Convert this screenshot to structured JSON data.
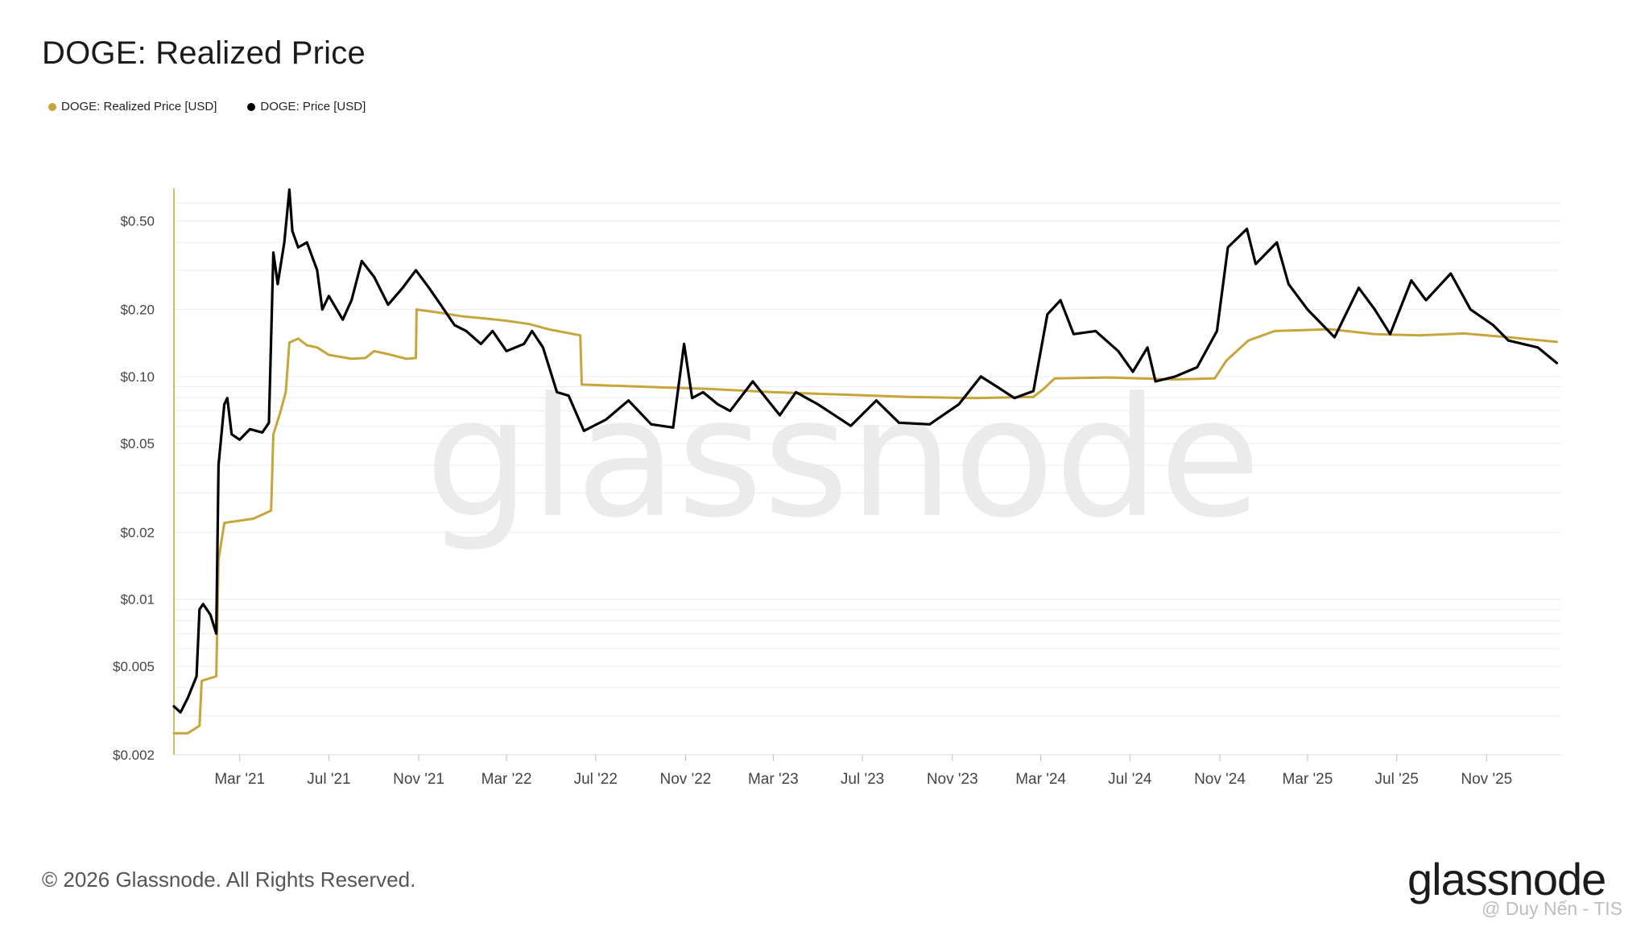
{
  "title": "DOGE: Realized Price",
  "legend": [
    {
      "label": "DOGE: Realized Price [USD]",
      "color": "#c6a63a"
    },
    {
      "label": "DOGE: Price [USD]",
      "color": "#000000"
    }
  ],
  "footer": {
    "copyright": "© 2026 Glassnode. All Rights Reserved.",
    "brand": "glassnode",
    "credit": "@ Duy Nến - TIS"
  },
  "watermark": "glassnode",
  "chart_data": {
    "type": "line",
    "title": "DOGE: Realized Price",
    "xlabel": "",
    "ylabel": "",
    "y_scale": "log",
    "ylim": [
      0.002,
      0.7
    ],
    "xlim": [
      "2020-12-01",
      "2026-02-10"
    ],
    "y_ticks": [
      {
        "value": 0.5,
        "label": "$0.50"
      },
      {
        "value": 0.2,
        "label": "$0.20"
      },
      {
        "value": 0.1,
        "label": "$0.10"
      },
      {
        "value": 0.05,
        "label": "$0.05"
      },
      {
        "value": 0.02,
        "label": "$0.02"
      },
      {
        "value": 0.01,
        "label": "$0.01"
      },
      {
        "value": 0.005,
        "label": "$0.005"
      },
      {
        "value": 0.002,
        "label": "$0.002"
      }
    ],
    "x_ticks": [
      {
        "date": "2021-03-01",
        "label": "Mar '21"
      },
      {
        "date": "2021-07-01",
        "label": "Jul '21"
      },
      {
        "date": "2021-11-01",
        "label": "Nov '21"
      },
      {
        "date": "2022-03-01",
        "label": "Mar '22"
      },
      {
        "date": "2022-07-01",
        "label": "Jul '22"
      },
      {
        "date": "2022-11-01",
        "label": "Nov '22"
      },
      {
        "date": "2023-03-01",
        "label": "Mar '23"
      },
      {
        "date": "2023-07-01",
        "label": "Jul '23"
      },
      {
        "date": "2023-11-01",
        "label": "Nov '23"
      },
      {
        "date": "2024-03-01",
        "label": "Mar '24"
      },
      {
        "date": "2024-07-01",
        "label": "Jul '24"
      },
      {
        "date": "2024-11-01",
        "label": "Nov '24"
      },
      {
        "date": "2025-03-01",
        "label": "Mar '25"
      },
      {
        "date": "2025-07-01",
        "label": "Jul '25"
      },
      {
        "date": "2025-11-01",
        "label": "Nov '25"
      }
    ],
    "grid": true,
    "legend_position": "top-left",
    "series": [
      {
        "name": "DOGE: Realized Price [USD]",
        "color": "#c6a63a",
        "points": [
          [
            "2020-12-01",
            0.0025
          ],
          [
            "2020-12-20",
            0.0025
          ],
          [
            "2021-01-05",
            0.0027
          ],
          [
            "2021-01-08",
            0.0043
          ],
          [
            "2021-01-28",
            0.0045
          ],
          [
            "2021-01-31",
            0.015
          ],
          [
            "2021-02-08",
            0.022
          ],
          [
            "2021-03-20",
            0.023
          ],
          [
            "2021-04-13",
            0.025
          ],
          [
            "2021-04-16",
            0.055
          ],
          [
            "2021-04-25",
            0.068
          ],
          [
            "2021-05-03",
            0.085
          ],
          [
            "2021-05-08",
            0.142
          ],
          [
            "2021-05-20",
            0.148
          ],
          [
            "2021-06-01",
            0.138
          ],
          [
            "2021-06-15",
            0.135
          ],
          [
            "2021-07-01",
            0.125
          ],
          [
            "2021-08-01",
            0.12
          ],
          [
            "2021-08-20",
            0.121
          ],
          [
            "2021-09-01",
            0.13
          ],
          [
            "2021-09-20",
            0.126
          ],
          [
            "2021-10-15",
            0.12
          ],
          [
            "2021-10-28",
            0.121
          ],
          [
            "2021-10-29",
            0.2
          ],
          [
            "2021-12-01",
            0.193
          ],
          [
            "2022-01-01",
            0.186
          ],
          [
            "2022-02-01",
            0.182
          ],
          [
            "2022-03-01",
            0.178
          ],
          [
            "2022-04-01",
            0.172
          ],
          [
            "2022-05-01",
            0.162
          ],
          [
            "2022-06-01",
            0.155
          ],
          [
            "2022-06-10",
            0.153
          ],
          [
            "2022-06-12",
            0.092
          ],
          [
            "2022-09-01",
            0.09
          ],
          [
            "2022-12-01",
            0.088
          ],
          [
            "2023-03-01",
            0.085
          ],
          [
            "2023-06-01",
            0.083
          ],
          [
            "2023-09-01",
            0.081
          ],
          [
            "2023-12-01",
            0.08
          ],
          [
            "2024-02-20",
            0.081
          ],
          [
            "2024-03-05",
            0.088
          ],
          [
            "2024-03-20",
            0.098
          ],
          [
            "2024-06-01",
            0.099
          ],
          [
            "2024-09-01",
            0.097
          ],
          [
            "2024-10-25",
            0.098
          ],
          [
            "2024-11-10",
            0.118
          ],
          [
            "2024-12-10",
            0.145
          ],
          [
            "2025-01-15",
            0.16
          ],
          [
            "2025-04-01",
            0.163
          ],
          [
            "2025-06-01",
            0.155
          ],
          [
            "2025-08-01",
            0.153
          ],
          [
            "2025-10-01",
            0.156
          ],
          [
            "2025-12-01",
            0.15
          ],
          [
            "2026-02-05",
            0.143
          ]
        ]
      },
      {
        "name": "DOGE: Price [USD]",
        "color": "#000000",
        "points": [
          [
            "2020-12-01",
            0.0033
          ],
          [
            "2020-12-10",
            0.0031
          ],
          [
            "2020-12-20",
            0.0036
          ],
          [
            "2021-01-01",
            0.0045
          ],
          [
            "2021-01-05",
            0.009
          ],
          [
            "2021-01-10",
            0.0095
          ],
          [
            "2021-01-20",
            0.0085
          ],
          [
            "2021-01-28",
            0.007
          ],
          [
            "2021-01-31",
            0.04
          ],
          [
            "2021-02-08",
            0.075
          ],
          [
            "2021-02-12",
            0.08
          ],
          [
            "2021-02-18",
            0.055
          ],
          [
            "2021-03-01",
            0.052
          ],
          [
            "2021-03-15",
            0.058
          ],
          [
            "2021-04-01",
            0.056
          ],
          [
            "2021-04-10",
            0.062
          ],
          [
            "2021-04-16",
            0.36
          ],
          [
            "2021-04-22",
            0.26
          ],
          [
            "2021-05-01",
            0.4
          ],
          [
            "2021-05-08",
            0.69
          ],
          [
            "2021-05-12",
            0.45
          ],
          [
            "2021-05-20",
            0.38
          ],
          [
            "2021-06-01",
            0.4
          ],
          [
            "2021-06-15",
            0.3
          ],
          [
            "2021-06-22",
            0.2
          ],
          [
            "2021-07-01",
            0.23
          ],
          [
            "2021-07-20",
            0.18
          ],
          [
            "2021-08-01",
            0.22
          ],
          [
            "2021-08-15",
            0.33
          ],
          [
            "2021-09-01",
            0.28
          ],
          [
            "2021-09-20",
            0.21
          ],
          [
            "2021-10-10",
            0.25
          ],
          [
            "2021-10-28",
            0.3
          ],
          [
            "2021-11-15",
            0.25
          ],
          [
            "2021-12-01",
            0.21
          ],
          [
            "2021-12-20",
            0.17
          ],
          [
            "2022-01-05",
            0.16
          ],
          [
            "2022-01-25",
            0.14
          ],
          [
            "2022-02-10",
            0.16
          ],
          [
            "2022-03-01",
            0.13
          ],
          [
            "2022-03-25",
            0.14
          ],
          [
            "2022-04-05",
            0.16
          ],
          [
            "2022-04-20",
            0.135
          ],
          [
            "2022-05-09",
            0.085
          ],
          [
            "2022-05-25",
            0.082
          ],
          [
            "2022-06-15",
            0.057
          ],
          [
            "2022-07-15",
            0.064
          ],
          [
            "2022-08-15",
            0.078
          ],
          [
            "2022-09-15",
            0.061
          ],
          [
            "2022-10-15",
            0.059
          ],
          [
            "2022-10-30",
            0.14
          ],
          [
            "2022-11-10",
            0.08
          ],
          [
            "2022-11-25",
            0.085
          ],
          [
            "2022-12-15",
            0.075
          ],
          [
            "2023-01-01",
            0.07
          ],
          [
            "2023-02-01",
            0.095
          ],
          [
            "2023-03-10",
            0.067
          ],
          [
            "2023-04-01",
            0.085
          ],
          [
            "2023-05-01",
            0.075
          ],
          [
            "2023-06-15",
            0.06
          ],
          [
            "2023-07-20",
            0.078
          ],
          [
            "2023-08-20",
            0.062
          ],
          [
            "2023-10-01",
            0.061
          ],
          [
            "2023-11-10",
            0.075
          ],
          [
            "2023-12-10",
            0.1
          ],
          [
            "2024-01-01",
            0.09
          ],
          [
            "2024-01-25",
            0.08
          ],
          [
            "2024-02-20",
            0.086
          ],
          [
            "2024-03-10",
            0.19
          ],
          [
            "2024-03-28",
            0.22
          ],
          [
            "2024-04-15",
            0.155
          ],
          [
            "2024-05-15",
            0.16
          ],
          [
            "2024-06-15",
            0.13
          ],
          [
            "2024-07-05",
            0.105
          ],
          [
            "2024-07-25",
            0.135
          ],
          [
            "2024-08-05",
            0.095
          ],
          [
            "2024-09-01",
            0.1
          ],
          [
            "2024-10-01",
            0.11
          ],
          [
            "2024-10-28",
            0.16
          ],
          [
            "2024-11-12",
            0.38
          ],
          [
            "2024-12-08",
            0.46
          ],
          [
            "2024-12-20",
            0.32
          ],
          [
            "2025-01-18",
            0.4
          ],
          [
            "2025-02-03",
            0.26
          ],
          [
            "2025-03-01",
            0.2
          ],
          [
            "2025-04-07",
            0.15
          ],
          [
            "2025-05-10",
            0.25
          ],
          [
            "2025-06-01",
            0.2
          ],
          [
            "2025-06-22",
            0.155
          ],
          [
            "2025-07-21",
            0.27
          ],
          [
            "2025-08-10",
            0.22
          ],
          [
            "2025-09-13",
            0.29
          ],
          [
            "2025-10-10",
            0.2
          ],
          [
            "2025-11-10",
            0.17
          ],
          [
            "2025-12-01",
            0.145
          ],
          [
            "2026-01-10",
            0.135
          ],
          [
            "2026-02-05",
            0.115
          ]
        ]
      }
    ]
  }
}
